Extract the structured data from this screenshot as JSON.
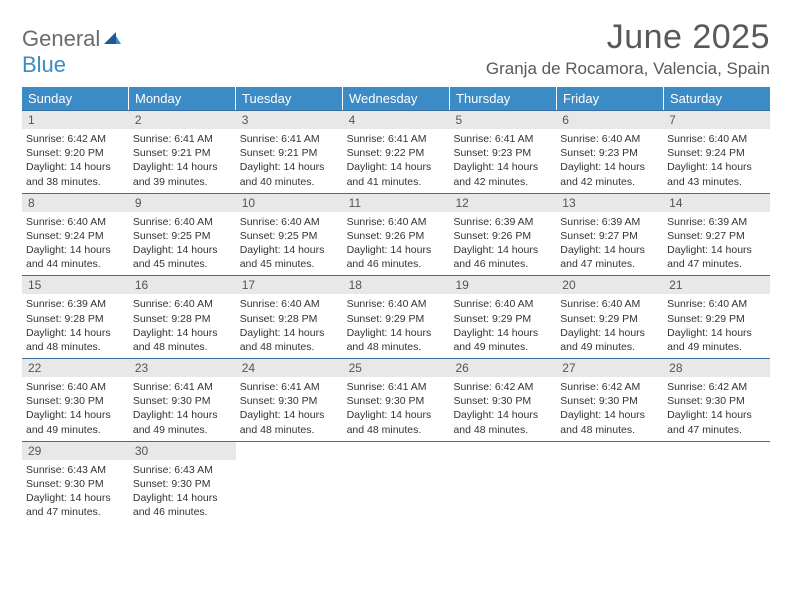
{
  "logo": {
    "general": "General",
    "blue": "Blue"
  },
  "title": "June 2025",
  "location": "Granja de Rocamora, Valencia, Spain",
  "colors": {
    "header_bg": "#3b8bc6",
    "header_text": "#ffffff",
    "daynum_bg": "#e8e8e8",
    "text": "#333333",
    "title_text": "#595959",
    "week_border": "#3b6ea0"
  },
  "day_names": [
    "Sunday",
    "Monday",
    "Tuesday",
    "Wednesday",
    "Thursday",
    "Friday",
    "Saturday"
  ],
  "days": [
    {
      "n": "1",
      "sr": "6:42 AM",
      "ss": "9:20 PM",
      "dl": "14 hours and 38 minutes."
    },
    {
      "n": "2",
      "sr": "6:41 AM",
      "ss": "9:21 PM",
      "dl": "14 hours and 39 minutes."
    },
    {
      "n": "3",
      "sr": "6:41 AM",
      "ss": "9:21 PM",
      "dl": "14 hours and 40 minutes."
    },
    {
      "n": "4",
      "sr": "6:41 AM",
      "ss": "9:22 PM",
      "dl": "14 hours and 41 minutes."
    },
    {
      "n": "5",
      "sr": "6:41 AM",
      "ss": "9:23 PM",
      "dl": "14 hours and 42 minutes."
    },
    {
      "n": "6",
      "sr": "6:40 AM",
      "ss": "9:23 PM",
      "dl": "14 hours and 42 minutes."
    },
    {
      "n": "7",
      "sr": "6:40 AM",
      "ss": "9:24 PM",
      "dl": "14 hours and 43 minutes."
    },
    {
      "n": "8",
      "sr": "6:40 AM",
      "ss": "9:24 PM",
      "dl": "14 hours and 44 minutes."
    },
    {
      "n": "9",
      "sr": "6:40 AM",
      "ss": "9:25 PM",
      "dl": "14 hours and 45 minutes."
    },
    {
      "n": "10",
      "sr": "6:40 AM",
      "ss": "9:25 PM",
      "dl": "14 hours and 45 minutes."
    },
    {
      "n": "11",
      "sr": "6:40 AM",
      "ss": "9:26 PM",
      "dl": "14 hours and 46 minutes."
    },
    {
      "n": "12",
      "sr": "6:39 AM",
      "ss": "9:26 PM",
      "dl": "14 hours and 46 minutes."
    },
    {
      "n": "13",
      "sr": "6:39 AM",
      "ss": "9:27 PM",
      "dl": "14 hours and 47 minutes."
    },
    {
      "n": "14",
      "sr": "6:39 AM",
      "ss": "9:27 PM",
      "dl": "14 hours and 47 minutes."
    },
    {
      "n": "15",
      "sr": "6:39 AM",
      "ss": "9:28 PM",
      "dl": "14 hours and 48 minutes."
    },
    {
      "n": "16",
      "sr": "6:40 AM",
      "ss": "9:28 PM",
      "dl": "14 hours and 48 minutes."
    },
    {
      "n": "17",
      "sr": "6:40 AM",
      "ss": "9:28 PM",
      "dl": "14 hours and 48 minutes."
    },
    {
      "n": "18",
      "sr": "6:40 AM",
      "ss": "9:29 PM",
      "dl": "14 hours and 48 minutes."
    },
    {
      "n": "19",
      "sr": "6:40 AM",
      "ss": "9:29 PM",
      "dl": "14 hours and 49 minutes."
    },
    {
      "n": "20",
      "sr": "6:40 AM",
      "ss": "9:29 PM",
      "dl": "14 hours and 49 minutes."
    },
    {
      "n": "21",
      "sr": "6:40 AM",
      "ss": "9:29 PM",
      "dl": "14 hours and 49 minutes."
    },
    {
      "n": "22",
      "sr": "6:40 AM",
      "ss": "9:30 PM",
      "dl": "14 hours and 49 minutes."
    },
    {
      "n": "23",
      "sr": "6:41 AM",
      "ss": "9:30 PM",
      "dl": "14 hours and 49 minutes."
    },
    {
      "n": "24",
      "sr": "6:41 AM",
      "ss": "9:30 PM",
      "dl": "14 hours and 48 minutes."
    },
    {
      "n": "25",
      "sr": "6:41 AM",
      "ss": "9:30 PM",
      "dl": "14 hours and 48 minutes."
    },
    {
      "n": "26",
      "sr": "6:42 AM",
      "ss": "9:30 PM",
      "dl": "14 hours and 48 minutes."
    },
    {
      "n": "27",
      "sr": "6:42 AM",
      "ss": "9:30 PM",
      "dl": "14 hours and 48 minutes."
    },
    {
      "n": "28",
      "sr": "6:42 AM",
      "ss": "9:30 PM",
      "dl": "14 hours and 47 minutes."
    },
    {
      "n": "29",
      "sr": "6:43 AM",
      "ss": "9:30 PM",
      "dl": "14 hours and 47 minutes."
    },
    {
      "n": "30",
      "sr": "6:43 AM",
      "ss": "9:30 PM",
      "dl": "14 hours and 46 minutes."
    }
  ],
  "labels": {
    "sunrise": "Sunrise: ",
    "sunset": "Sunset: ",
    "daylight": "Daylight: "
  },
  "first_weekday_offset": 0,
  "layout": {
    "columns": 7,
    "rows": 5
  }
}
